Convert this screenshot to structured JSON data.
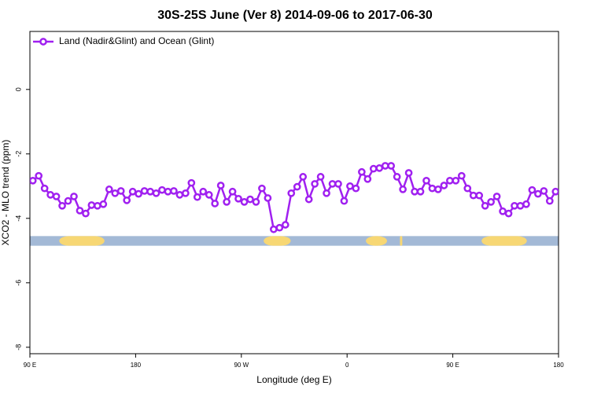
{
  "chart_data": {
    "type": "line",
    "title": "30S-25S June (Ver 8)   2014-09-06 to 2017-06-30",
    "x_label": "Longitude (deg E)",
    "y_label": "XCO2 - MLO trend (ppm)",
    "xlim": [
      90,
      540
    ],
    "ylim": [
      -8.2,
      1.8
    ],
    "xticks": [
      {
        "value": 90,
        "label": "90 E"
      },
      180,
      {
        "value": 270,
        "label": "90 W"
      },
      {
        "value": 360,
        "label": "0"
      },
      {
        "value": 450,
        "label": "90 E"
      },
      {
        "value": 540,
        "label": "180"
      }
    ],
    "yticks": [
      0,
      -2,
      -4,
      -6,
      -8
    ],
    "legend": "top-left",
    "x": [
      92.5,
      97.5,
      102.5,
      107.5,
      112.5,
      117.5,
      122.5,
      127.5,
      132.5,
      137.5,
      142.5,
      147.5,
      152.5,
      157.5,
      162.5,
      167.5,
      172.5,
      177.5,
      182.5,
      187.5,
      192.5,
      197.5,
      202.5,
      207.5,
      212.5,
      217.5,
      222.5,
      227.5,
      232.5,
      237.5,
      242.5,
      247.5,
      252.5,
      257.5,
      262.5,
      267.5,
      272.5,
      277.5,
      282.5,
      287.5,
      292.5,
      297.5,
      302.5,
      307.5,
      312.5,
      317.5,
      322.5,
      327.5,
      332.5,
      337.5,
      342.5,
      347.5,
      352.5,
      357.5,
      362.5,
      367.5,
      372.5,
      377.5,
      382.5,
      387.5,
      392.5,
      397.5,
      402.5,
      407.5,
      412.5,
      417.5,
      422.5,
      427.5,
      432.5,
      437.5,
      442.5,
      447.5,
      452.5,
      457.5,
      462.5,
      467.5,
      472.5,
      477.5,
      482.5,
      487.5,
      492.5,
      497.5,
      502.5,
      507.5,
      512.5,
      517.5,
      522.5,
      527.5,
      532.5,
      537.5
    ],
    "series": [
      {
        "name": "Land (Nadir&Glint) and Ocean (Glint)",
        "color": "#a020f0",
        "values": [
          -2.83,
          -2.68,
          -3.07,
          -3.27,
          -3.32,
          -3.61,
          -3.46,
          -3.32,
          -3.76,
          -3.85,
          -3.59,
          -3.61,
          -3.56,
          -3.1,
          -3.22,
          -3.15,
          -3.44,
          -3.17,
          -3.24,
          -3.15,
          -3.17,
          -3.22,
          -3.12,
          -3.17,
          -3.15,
          -3.27,
          -3.22,
          -2.9,
          -3.34,
          -3.17,
          -3.27,
          -3.54,
          -2.98,
          -3.49,
          -3.17,
          -3.39,
          -3.49,
          -3.41,
          -3.49,
          -3.07,
          -3.37,
          -4.34,
          -4.29,
          -4.2,
          -3.22,
          -3.02,
          -2.71,
          -3.41,
          -2.93,
          -2.71,
          -3.22,
          -2.93,
          -2.93,
          -3.46,
          -3.0,
          -3.07,
          -2.56,
          -2.78,
          -2.46,
          -2.44,
          -2.37,
          -2.37,
          -2.71,
          -3.1,
          -2.59,
          -3.17,
          -3.17,
          -2.83,
          -3.07,
          -3.1,
          -2.98,
          -2.83,
          -2.83,
          -2.68,
          -3.07,
          -3.29,
          -3.29,
          -3.61,
          -3.49,
          -3.32,
          -3.78,
          -3.85,
          -3.61,
          -3.61,
          -3.56,
          -3.12,
          -3.24,
          -3.15,
          -3.46,
          -3.17
        ]
      }
    ],
    "surface_band": {
      "ylim": [
        -4.85,
        -4.55
      ],
      "ocean_color": "#a3b9d6",
      "land_color": "#f7d774",
      "land": [
        [
          115,
          153.5
        ],
        [
          289,
          312
        ],
        [
          376,
          394
        ],
        [
          405,
          407
        ],
        [
          474.5,
          513
        ]
      ]
    }
  }
}
